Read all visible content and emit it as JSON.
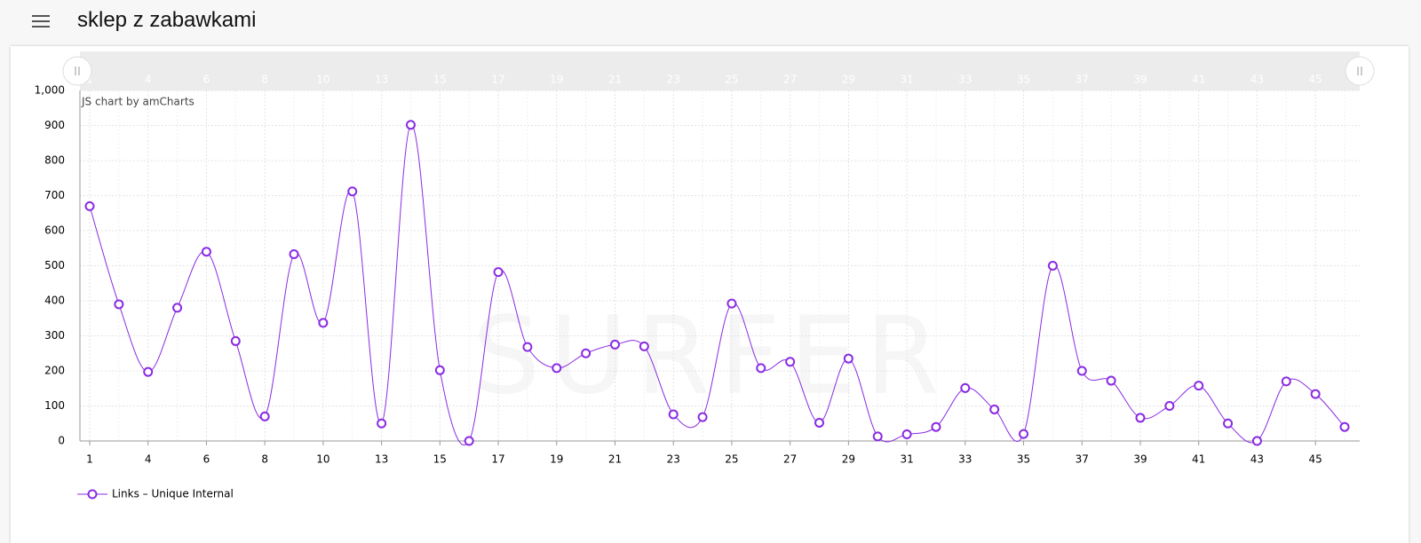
{
  "header": {
    "title": "sklep z zabawkami"
  },
  "chart_data": {
    "type": "line",
    "credit": "JS chart by amCharts",
    "watermark": "SURFER",
    "categories": [
      "1",
      null,
      "4",
      null,
      "6",
      null,
      "8",
      null,
      "10",
      null,
      "13",
      null,
      "15",
      null,
      "17",
      null,
      "19",
      null,
      "21",
      null,
      "23",
      null,
      "25",
      null,
      "27",
      null,
      "29",
      null,
      "31",
      null,
      "33",
      null,
      "35",
      null,
      "37",
      null,
      "39",
      null,
      "41",
      null,
      "43",
      null,
      "45",
      null
    ],
    "series": [
      {
        "name": "Links – Unique Internal",
        "color": "#8a2be2",
        "values": [
          670,
          390,
          197,
          380,
          540,
          285,
          70,
          533,
          337,
          712,
          50,
          902,
          202,
          0,
          482,
          268,
          208,
          250,
          275,
          270,
          76,
          68,
          392,
          208,
          226,
          52,
          235,
          13,
          19,
          40,
          151,
          90,
          20,
          500,
          200,
          172,
          66,
          100,
          158,
          50,
          0,
          170,
          134,
          40
        ]
      }
    ],
    "ylim": [
      0,
      1000
    ],
    "yticks": [
      0,
      100,
      200,
      300,
      400,
      500,
      600,
      700,
      800,
      900,
      {
        "value": 1000,
        "label": "1,000"
      }
    ],
    "grid": true,
    "legend": "bottom-left"
  }
}
